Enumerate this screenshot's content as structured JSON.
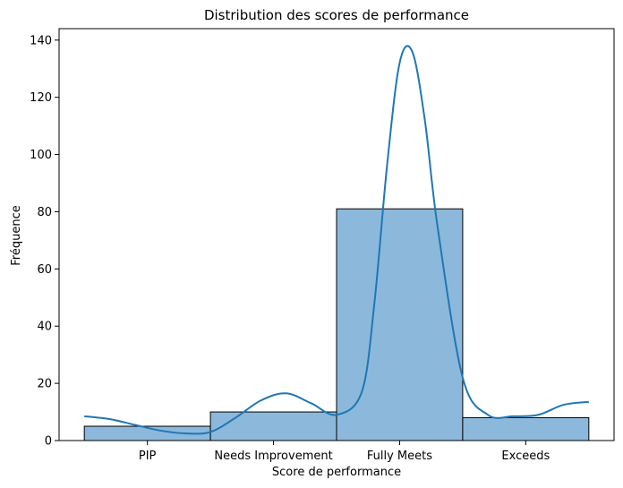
{
  "chart_data": {
    "type": "bar",
    "title": "Distribution des scores de performance",
    "xlabel": "Score de performance",
    "ylabel": "Fréquence",
    "categories": [
      "PIP",
      "Needs Improvement",
      "Fully Meets",
      "Exceeds"
    ],
    "values": [
      5,
      10,
      81,
      8
    ],
    "ylim": [
      0,
      144
    ],
    "yticks": [
      0,
      20,
      40,
      60,
      80,
      100,
      120,
      140
    ],
    "grid": false,
    "bar_color": "#8cb9db",
    "bar_edge_color": "#000000",
    "kde_color": "#1f77b4",
    "kde_curve": {
      "x": [
        -0.5,
        -0.3,
        -0.1,
        0.1,
        0.3,
        0.5,
        0.7,
        0.9,
        1.1,
        1.3,
        1.5,
        1.7,
        1.8,
        1.9,
        2.0,
        2.1,
        2.2,
        2.3,
        2.5,
        2.7,
        2.9,
        3.1,
        3.3,
        3.5
      ],
      "y": [
        8.5,
        7.5,
        5.5,
        3.5,
        2.5,
        3.0,
        8.0,
        14.0,
        16.5,
        13.0,
        9.0,
        17.0,
        48.0,
        96.0,
        132.0,
        136.0,
        112.0,
        75.0,
        22.0,
        9.0,
        8.5,
        9.0,
        12.5,
        13.5
      ]
    }
  }
}
